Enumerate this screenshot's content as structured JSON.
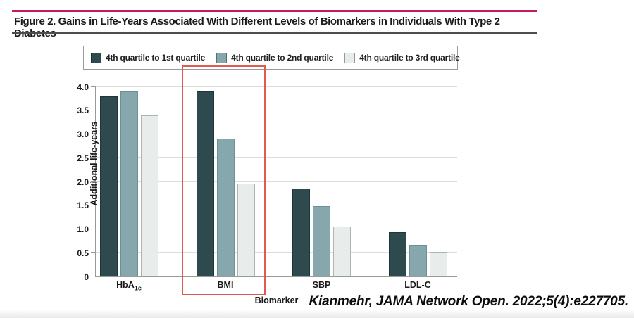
{
  "header": {
    "title": "Figure 2. Gains in Life-Years Associated With Different Levels of Biomarkers in Individuals With Type 2 Diabetes"
  },
  "citation": "Kianmehr, JAMA Network Open. 2022;5(4):e227705.",
  "colors": {
    "accent_rule": "#c31a64",
    "title_divider": "#4d4d4d",
    "axis": "#999999",
    "grid": "#dcdcdc",
    "highlight_box": "#e05a52"
  },
  "chart_data": {
    "type": "bar",
    "title": "",
    "xlabel": "Biomarker",
    "ylabel": "Additional life-years",
    "ylim": [
      0,
      4.0
    ],
    "yticks": [
      0,
      0.5,
      1.0,
      1.5,
      2.0,
      2.5,
      3.0,
      3.5,
      4.0
    ],
    "ytick_labels": [
      "0",
      "0.5",
      "1.0",
      "1.5",
      "2.0",
      "2.5",
      "3.0",
      "3.5",
      "4.0"
    ],
    "grid": true,
    "legend_position": "top",
    "categories": [
      {
        "label": "HbA",
        "sub": "1c"
      },
      {
        "label": "BMI"
      },
      {
        "label": "SBP"
      },
      {
        "label": "LDL-C"
      }
    ],
    "series": [
      {
        "name": "4th quartile to 1st quartile",
        "color": "#2e4a4e",
        "border": "#1f3538",
        "values": [
          3.8,
          3.9,
          1.85,
          0.93
        ]
      },
      {
        "name": "4th quartile to 2nd quartile",
        "color": "#86a8ad",
        "border": "#6b9097",
        "values": [
          3.9,
          2.9,
          1.48,
          0.67
        ]
      },
      {
        "name": "4th quartile to 3rd quartile",
        "color": "#e8eceb",
        "border": "#adb5b4",
        "values": [
          3.4,
          1.95,
          1.05,
          0.52
        ]
      }
    ],
    "highlight": {
      "category": "BMI"
    }
  }
}
